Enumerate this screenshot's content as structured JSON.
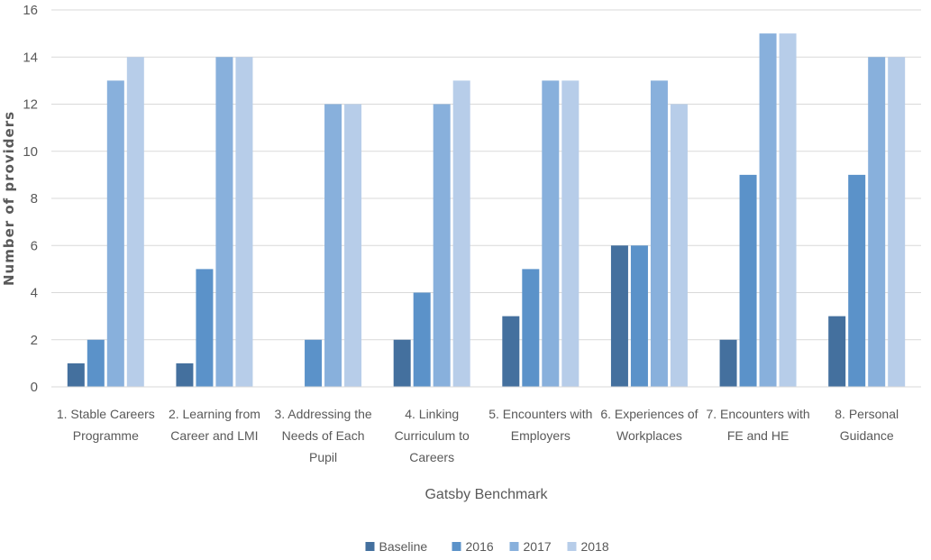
{
  "chart_data": {
    "type": "bar",
    "title": "",
    "xlabel": "Gatsby Benchmark",
    "ylabel": "Number of providers",
    "ylim": [
      0,
      16
    ],
    "yticks": [
      0,
      2,
      4,
      6,
      8,
      10,
      12,
      14,
      16
    ],
    "grid": true,
    "legend_position": "bottom",
    "categories": [
      [
        "1. Stable Careers",
        "Programme"
      ],
      [
        "2. Learning from",
        "Career and LMI"
      ],
      [
        "3. Addressing the",
        "Needs of Each",
        "Pupil"
      ],
      [
        "4. Linking",
        "Curriculum to",
        "Careers"
      ],
      [
        "5. Encounters with",
        "Employers"
      ],
      [
        "6. Experiences of",
        "Workplaces"
      ],
      [
        "7. Encounters with",
        "FE and HE"
      ],
      [
        "8. Personal",
        "Guidance"
      ]
    ],
    "series": [
      {
        "name": "Baseline",
        "color": "#44709e",
        "values": [
          1,
          1,
          0,
          2,
          3,
          6,
          2,
          3
        ]
      },
      {
        "name": "2016",
        "color": "#5b92c9",
        "values": [
          2,
          5,
          2,
          4,
          5,
          6,
          9,
          9
        ]
      },
      {
        "name": "2017",
        "color": "#88b0dc",
        "values": [
          13,
          14,
          12,
          12,
          13,
          13,
          15,
          14
        ]
      },
      {
        "name": "2018",
        "color": "#b7cde9",
        "values": [
          14,
          14,
          12,
          13,
          13,
          12,
          15,
          14
        ]
      }
    ]
  }
}
